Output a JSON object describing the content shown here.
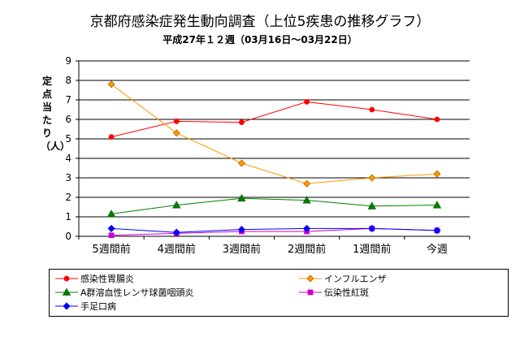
{
  "chart_data": {
    "type": "line",
    "title": "京都府感染症発生動向調査（上位5疾患の推移グラフ）",
    "subtitle": "平成27年１２週（03月16日～03月22日）",
    "ylabel": "定点当たり（人）",
    "xlabel": "",
    "categories": [
      "5週間前",
      "4週間前",
      "3週間前",
      "2週間前",
      "1週間前",
      "今週"
    ],
    "ylim": [
      0,
      9
    ],
    "yticks": [
      0,
      1,
      2,
      3,
      4,
      5,
      6,
      7,
      8,
      9
    ],
    "grid": true,
    "legend_position": "bottom",
    "series": [
      {
        "name": "感染性胃腸炎",
        "values": [
          5.1,
          5.9,
          5.85,
          6.9,
          6.5,
          6.0
        ],
        "color": "#ff0000",
        "marker": "circle"
      },
      {
        "name": "インフルエンザ",
        "values": [
          7.8,
          5.3,
          3.75,
          2.7,
          3.0,
          3.2
        ],
        "color": "#ff9900",
        "marker": "diamond"
      },
      {
        "name": "A群溶血性レンサ球菌咽頭炎",
        "values": [
          1.15,
          1.6,
          1.95,
          1.85,
          1.55,
          1.6
        ],
        "color": "#008000",
        "marker": "triangle"
      },
      {
        "name": "伝染性紅斑",
        "values": [
          0.05,
          0.15,
          0.25,
          0.25,
          0.4,
          0.3
        ],
        "color": "#cc00cc",
        "marker": "square"
      },
      {
        "name": "手足口病",
        "values": [
          0.4,
          0.2,
          0.35,
          0.4,
          0.4,
          0.3
        ],
        "color": "#0000ff",
        "marker": "diamond"
      }
    ]
  }
}
